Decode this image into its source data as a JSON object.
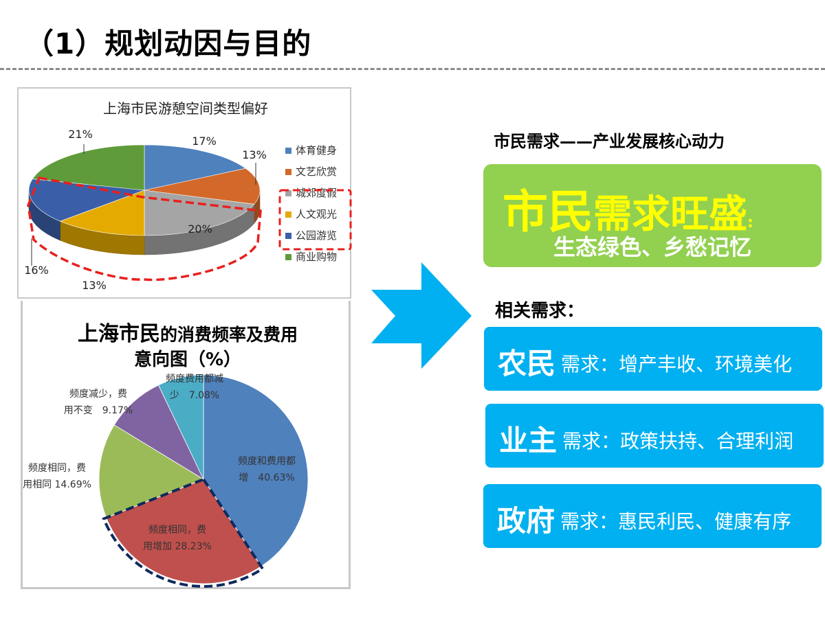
{
  "page": {
    "title": "（1）规划动因与目的"
  },
  "right": {
    "heading": "市民需求——产业发展核心动力",
    "highlight": {
      "big_part1": "市民",
      "big_part2": "需求旺盛",
      "colon": ":",
      "sub": "生态绿色、乡愁记忆",
      "bg_color": "#92d050",
      "text_color": "#ffff00"
    },
    "related_heading": "相关需求：",
    "related": [
      {
        "who": "农民",
        "what": "需求：增产丰收、环境美化"
      },
      {
        "who": "业主",
        "what": "需求：政策扶持、合理利润"
      },
      {
        "who": "政府",
        "what": "需求：惠民利民、健康有序"
      }
    ],
    "box_color": "#00b0f0"
  },
  "chart_data": [
    {
      "type": "pie",
      "style": "3d",
      "title": "上海市民游憩空间类型偏好",
      "categories": [
        "体育健身",
        "文艺欣赏",
        "城郊度假",
        "人文观光",
        "公园游览",
        "商业购物"
      ],
      "values": [
        17,
        13,
        20,
        13,
        16,
        21
      ],
      "labels": [
        "17%",
        "13%",
        "20%",
        "13%",
        "16%",
        "21%"
      ],
      "colors": [
        "#4f81bd",
        "#d2692a",
        "#a5a5a5",
        "#e5aa00",
        "#3a5fa8",
        "#5f9b3a"
      ],
      "legend_position": "right",
      "highlighted": [
        "城郊度假",
        "人文观光",
        "公园游览"
      ],
      "highlight_color": "#e8201e"
    },
    {
      "type": "pie",
      "title": "上海市民的消费频率及费用意向图（%）",
      "title_line1a": "上海市民",
      "title_line1b": "的消费频率及费用",
      "title_line2": "意向图（%）",
      "categories": [
        "频度和费用都增",
        "频度相同，费用增加",
        "频度相同，费用相同",
        "频度减少，费用不变",
        "频度费用都减少"
      ],
      "values": [
        40.63,
        28.23,
        14.69,
        9.17,
        7.08
      ],
      "labels": [
        [
          "频度和费用都",
          "增　40.63%"
        ],
        [
          "频度相同，费",
          "用增加 28.23%"
        ],
        [
          "频度相同，费",
          "用相同 14.69%"
        ],
        [
          "频度减少，费",
          "用不变　9.17%"
        ],
        [
          "频度费用都减",
          "少　7.08%"
        ]
      ],
      "colors": [
        "#4f81bd",
        "#c0504d",
        "#9bbb59",
        "#8064a2",
        "#4bacc6"
      ],
      "highlighted": [
        "频度相同，费用增加"
      ],
      "highlight_color": "#0f2a5e"
    }
  ]
}
